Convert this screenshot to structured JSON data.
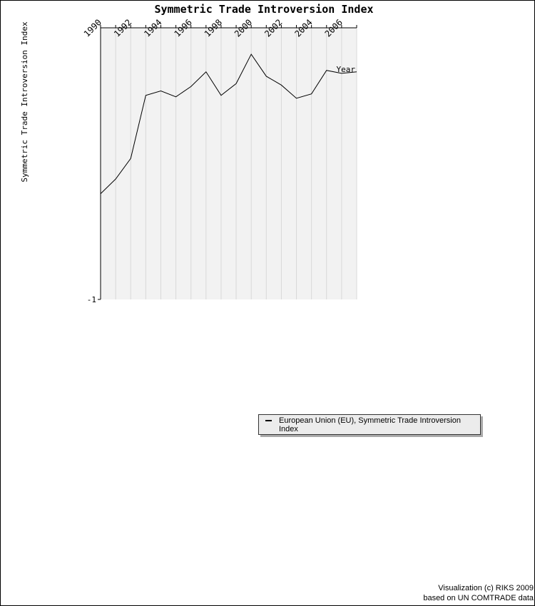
{
  "chart_data": {
    "type": "line",
    "title": "Symmetric Trade Introversion Index",
    "xlabel": "Year",
    "ylabel": "Symmetric Trade Introversion Index",
    "ytick_labels": [
      "-1"
    ],
    "xtick_labels": [
      "1990",
      "1992",
      "1994",
      "1996",
      "1998",
      "2000",
      "2002",
      "2004",
      "2006"
    ],
    "x": [
      1990,
      1991,
      1992,
      1993,
      1994,
      1995,
      1996,
      1997,
      1998,
      1999,
      2000,
      2001,
      2002,
      2003,
      2004,
      2005,
      2006,
      2007
    ],
    "xlim": [
      1990,
      2007
    ],
    "ylim": [
      -1,
      0.85
    ],
    "grid": "vertical",
    "legend_position": "bottom-right",
    "series": [
      {
        "name": "European Union (EU), Symmetric Trade Introversion Index",
        "color": "#000000",
        "values": [
          -0.28,
          -0.18,
          -0.04,
          0.39,
          0.42,
          0.38,
          0.45,
          0.55,
          0.39,
          0.47,
          0.67,
          0.52,
          0.46,
          0.37,
          0.4,
          0.56,
          0.54,
          0.55
        ]
      }
    ]
  },
  "legend": {
    "label": "European Union (EU), Symmetric Trade Introversion Index"
  },
  "credit": {
    "line1": "Visualization (c) RIKS 2009",
    "line2": "based on UN COMTRADE data"
  }
}
